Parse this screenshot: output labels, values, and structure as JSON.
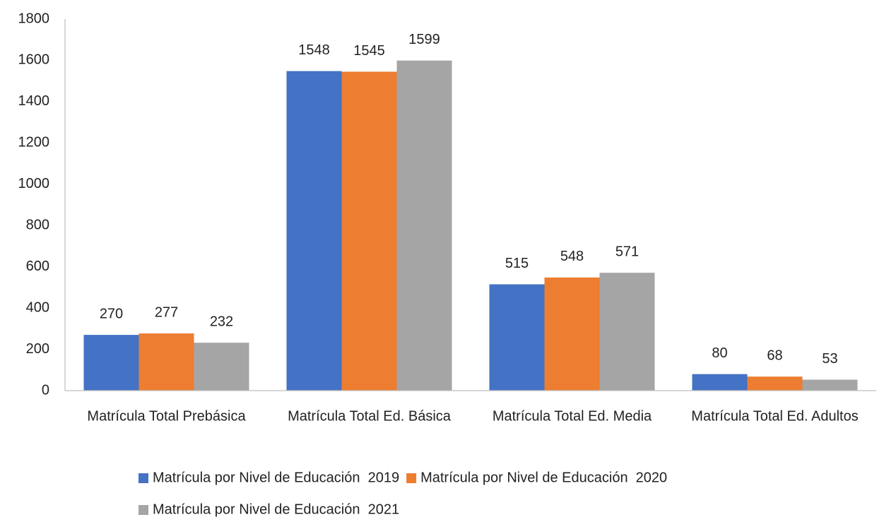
{
  "chart_data": {
    "type": "bar",
    "categories": [
      "Matrícula Total Prebásica",
      "Matrícula Total Ed. Básica",
      "Matrícula Total Ed. Media",
      "Matrícula Total Ed. Adultos"
    ],
    "series": [
      {
        "name": "Matrícula por Nivel de Educación  2019",
        "color": "#4472c4",
        "values": [
          270,
          1548,
          515,
          80
        ]
      },
      {
        "name": "Matrícula por Nivel de Educación  2020",
        "color": "#ed7d31",
        "values": [
          277,
          1545,
          548,
          68
        ]
      },
      {
        "name": "Matrícula por Nivel de Educación  2021",
        "color": "#a5a5a5",
        "values": [
          232,
          1599,
          571,
          53
        ]
      }
    ],
    "ylim": [
      0,
      1800
    ],
    "yticks": [
      0,
      200,
      400,
      600,
      800,
      1000,
      1200,
      1400,
      1600,
      1800
    ],
    "grid": false,
    "legend": "bottom"
  }
}
